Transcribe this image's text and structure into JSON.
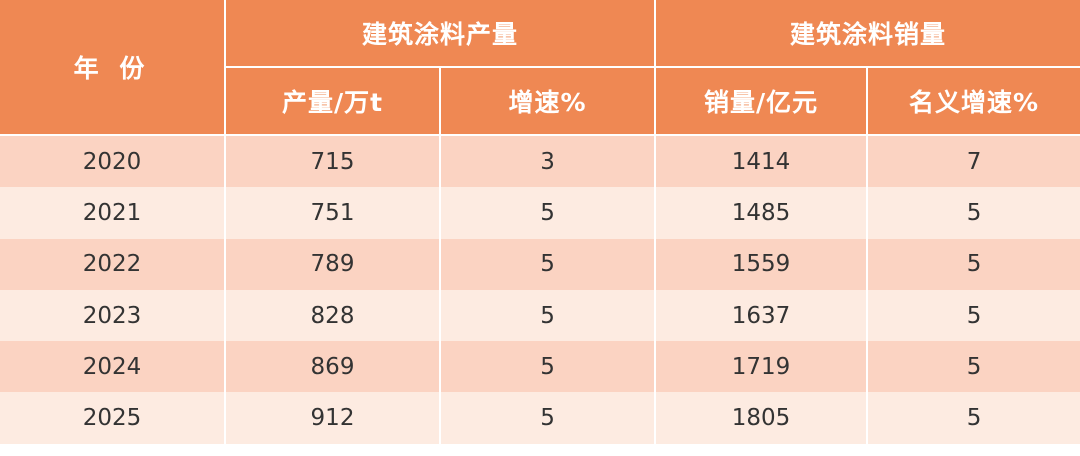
{
  "chart_data": {
    "type": "table",
    "header": {
      "year": "年 份",
      "group_production": "建筑涂料产量",
      "group_sales": "建筑涂料销量",
      "columns": [
        "产量/万t",
        "增速%",
        "销量/亿元",
        "名义增速%"
      ]
    },
    "rows": [
      [
        "2020",
        "715",
        "3",
        "1414",
        "7"
      ],
      [
        "2021",
        "751",
        "5",
        "1485",
        "5"
      ],
      [
        "2022",
        "789",
        "5",
        "1559",
        "5"
      ],
      [
        "2023",
        "828",
        "5",
        "1637",
        "5"
      ],
      [
        "2024",
        "869",
        "5",
        "1719",
        "5"
      ],
      [
        "2025",
        "912",
        "5",
        "1805",
        "5"
      ]
    ],
    "colors": {
      "header": "#EF8853",
      "row_odd": "#FBD3C2",
      "row_even": "#FDEBE1"
    }
  }
}
